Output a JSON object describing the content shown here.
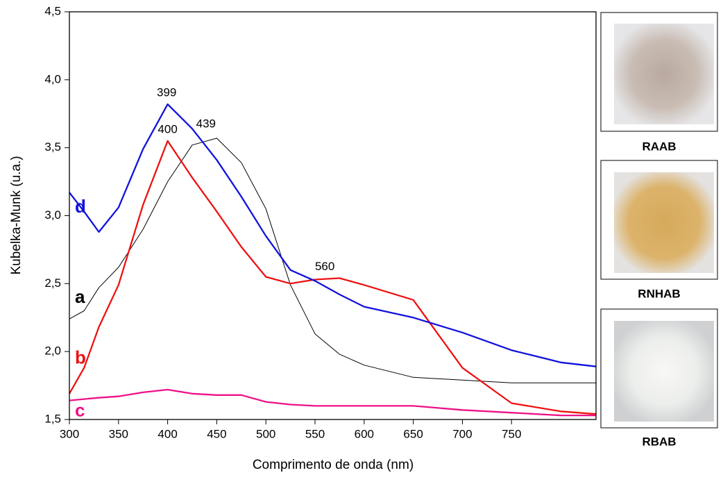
{
  "chart_data": {
    "type": "line",
    "y_label": "Kubelka-Munk (u.a.)",
    "x_label": "Comprimento de onda (nm)",
    "x": [
      300,
      315,
      330,
      350,
      375,
      400,
      425,
      450,
      475,
      500,
      525,
      550,
      575,
      600,
      650,
      700,
      750,
      800,
      836
    ],
    "series": [
      {
        "name": "a",
        "color": "#000000",
        "values": [
          2.24,
          2.3,
          2.47,
          2.62,
          2.9,
          3.25,
          3.52,
          3.57,
          3.39,
          3.05,
          2.49,
          2.13,
          1.98,
          1.9,
          1.81,
          1.79,
          1.77,
          1.77,
          1.77
        ]
      },
      {
        "name": "b",
        "color": "#ee1111",
        "values": [
          1.69,
          1.88,
          2.18,
          2.49,
          3.08,
          3.55,
          3.28,
          3.03,
          2.77,
          2.55,
          2.5,
          2.53,
          2.54,
          2.49,
          2.38,
          1.88,
          1.62,
          1.56,
          1.54
        ]
      },
      {
        "name": "c",
        "color": "#ee1188",
        "values": [
          1.64,
          1.65,
          1.66,
          1.67,
          1.7,
          1.72,
          1.69,
          1.68,
          1.68,
          1.63,
          1.61,
          1.6,
          1.6,
          1.6,
          1.6,
          1.57,
          1.55,
          1.53,
          1.53
        ]
      },
      {
        "name": "d",
        "color": "#1111dd",
        "values": [
          3.17,
          3.03,
          2.88,
          3.06,
          3.49,
          3.82,
          3.64,
          3.41,
          3.14,
          2.85,
          2.6,
          2.52,
          2.42,
          2.33,
          2.25,
          2.14,
          2.01,
          1.92,
          1.89
        ]
      }
    ],
    "annotations": [
      {
        "text": "399",
        "x": 399,
        "y": 3.82
      },
      {
        "text": "400",
        "x": 400,
        "y": 3.55
      },
      {
        "text": "439",
        "x": 439,
        "y": 3.59
      },
      {
        "text": "560",
        "x": 560,
        "y": 2.54
      }
    ],
    "xlim": [
      300,
      836
    ],
    "ylim": [
      1.5,
      4.5
    ],
    "xticks": [
      300,
      350,
      400,
      450,
      500,
      550,
      600,
      650,
      700,
      750
    ],
    "yticks": [
      {
        "value": 1.5,
        "label": "1,5"
      },
      {
        "value": 2.0,
        "label": "2,0"
      },
      {
        "value": 2.5,
        "label": "2,5"
      },
      {
        "value": 3.0,
        "label": "3,0"
      },
      {
        "value": 3.5,
        "label": "3,5"
      },
      {
        "value": 4.0,
        "label": "4,0"
      },
      {
        "value": 4.5,
        "label": "4,5"
      }
    ],
    "grid": false
  },
  "photo_panel": {
    "labels": [
      "RAAB",
      "RNHAB",
      "RBAB"
    ]
  }
}
